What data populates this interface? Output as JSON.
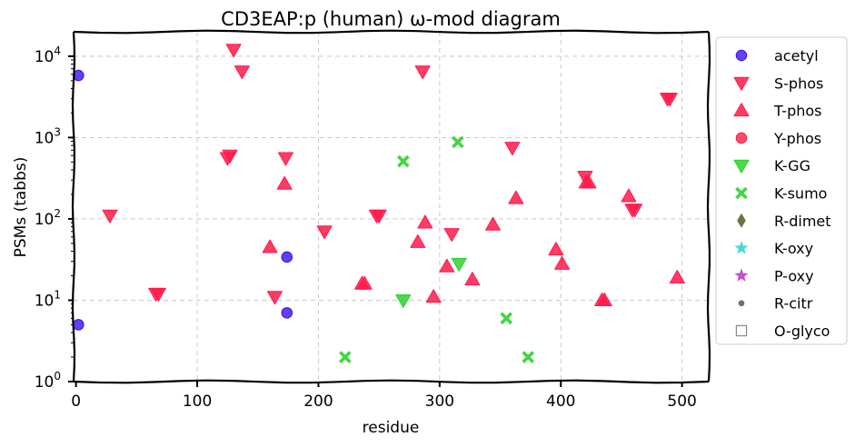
{
  "chart_data": {
    "type": "scatter",
    "title": "CD3EAP:p (human) ω-mod diagram",
    "xlabel": "residue",
    "ylabel": "PSMs (tabbs)",
    "xlim": [
      -2,
      522
    ],
    "ylim_log10": [
      0,
      4.3
    ],
    "x_ticks": [
      0,
      100,
      200,
      300,
      400,
      500
    ],
    "y_ticks": [
      {
        "base": "10",
        "exp": "0",
        "value": 1
      },
      {
        "base": "10",
        "exp": "1",
        "value": 10
      },
      {
        "base": "10",
        "exp": "2",
        "value": 100
      },
      {
        "base": "10",
        "exp": "3",
        "value": 1000
      },
      {
        "base": "10",
        "exp": "4",
        "value": 10000
      }
    ],
    "grid": true,
    "y_scale": "log",
    "legend_position": "outside-right",
    "series": [
      {
        "name": "acetyl",
        "marker": "circle",
        "color": "#3d0ff0",
        "points": [
          [
            2,
            5800
          ],
          [
            2,
            5
          ],
          [
            174,
            34
          ],
          [
            174,
            7
          ]
        ]
      },
      {
        "name": "S-phos",
        "marker": "triangle-down",
        "color": "#ff1a4a",
        "points": [
          [
            130,
            12000
          ],
          [
            137,
            6500
          ],
          [
            286,
            6500
          ],
          [
            490,
            3000
          ],
          [
            488,
            3000
          ],
          [
            127,
            600
          ],
          [
            125,
            560
          ],
          [
            173,
            560
          ],
          [
            360,
            750
          ],
          [
            28,
            110
          ],
          [
            205,
            70
          ],
          [
            310,
            65
          ],
          [
            68,
            12
          ],
          [
            66,
            12
          ],
          [
            164,
            11
          ],
          [
            250,
            110
          ],
          [
            248,
            110
          ],
          [
            420,
            330
          ],
          [
            459,
            130
          ],
          [
            461,
            130
          ]
        ]
      },
      {
        "name": "T-phos",
        "marker": "triangle-up",
        "color": "#ff1a4a",
        "points": [
          [
            172,
            270
          ],
          [
            363,
            180
          ],
          [
            423,
            280
          ],
          [
            421,
            280
          ],
          [
            456,
            190
          ],
          [
            160,
            45
          ],
          [
            288,
            90
          ],
          [
            344,
            85
          ],
          [
            282,
            52
          ],
          [
            396,
            42
          ],
          [
            401,
            28
          ],
          [
            306,
            26
          ],
          [
            327,
            18
          ],
          [
            496,
            19
          ],
          [
            238,
            16
          ],
          [
            236,
            16
          ],
          [
            295,
            11
          ],
          [
            436,
            10
          ],
          [
            434,
            10
          ]
        ]
      },
      {
        "name": "Y-phos",
        "marker": "circle",
        "color": "#ff1a4a",
        "points": []
      },
      {
        "name": "K-GG",
        "marker": "triangle-down",
        "color": "#2ed12e",
        "points": [
          [
            270,
            10
          ],
          [
            316,
            28
          ]
        ]
      },
      {
        "name": "K-sumo",
        "marker": "x",
        "color": "#2ed12e",
        "points": [
          [
            270,
            510
          ],
          [
            315,
            880
          ],
          [
            222,
            2
          ],
          [
            355,
            6
          ],
          [
            373,
            2
          ]
        ]
      },
      {
        "name": "R-dimet",
        "marker": "diamond",
        "color": "#555b1f",
        "points": []
      },
      {
        "name": "K-oxy",
        "marker": "star",
        "color": "#2ed1d1",
        "points": []
      },
      {
        "name": "P-oxy",
        "marker": "star",
        "color": "#c12ed1",
        "points": []
      },
      {
        "name": "R-citr",
        "marker": "small-circle",
        "color": "#555555",
        "points": []
      },
      {
        "name": "O-glyco",
        "marker": "square-open",
        "color": "#888888",
        "points": []
      }
    ]
  }
}
